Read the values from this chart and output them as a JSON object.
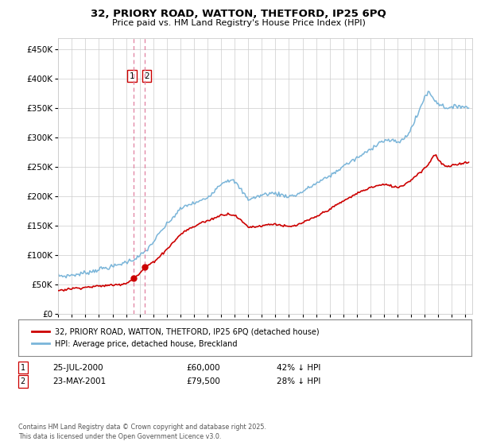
{
  "title": "32, PRIORY ROAD, WATTON, THETFORD, IP25 6PQ",
  "subtitle": "Price paid vs. HM Land Registry's House Price Index (HPI)",
  "ylim": [
    0,
    470000
  ],
  "xlim_start": 1995.0,
  "xlim_end": 2025.5,
  "legend_line1": "32, PRIORY ROAD, WATTON, THETFORD, IP25 6PQ (detached house)",
  "legend_line2": "HPI: Average price, detached house, Breckland",
  "purchase1_date": "25-JUL-2000",
  "purchase1_price": "£60,000",
  "purchase1_hpi": "42% ↓ HPI",
  "purchase1_x": 2000.56,
  "purchase1_y": 60000,
  "purchase2_date": "23-MAY-2001",
  "purchase2_price": "£79,500",
  "purchase2_hpi": "28% ↓ HPI",
  "purchase2_x": 2001.39,
  "purchase2_y": 79500,
  "vline1_x": 2000.56,
  "vline2_x": 2001.39,
  "hpi_color": "#7ab5d9",
  "price_color": "#cc0000",
  "vline_color": "#e080a0",
  "footer": "Contains HM Land Registry data © Crown copyright and database right 2025.\nThis data is licensed under the Open Government Licence v3.0.",
  "background_color": "#ffffff",
  "grid_color": "#cccccc",
  "hpi_keypoints": [
    [
      1995.0,
      65000
    ],
    [
      1995.5,
      64000
    ],
    [
      1996.0,
      66000
    ],
    [
      1996.5,
      67000
    ],
    [
      1997.0,
      70000
    ],
    [
      1997.5,
      72000
    ],
    [
      1998.0,
      76000
    ],
    [
      1998.5,
      78000
    ],
    [
      1999.0,
      80000
    ],
    [
      1999.5,
      84000
    ],
    [
      2000.0,
      88000
    ],
    [
      2000.5,
      92000
    ],
    [
      2001.0,
      98000
    ],
    [
      2001.5,
      108000
    ],
    [
      2002.0,
      122000
    ],
    [
      2002.5,
      138000
    ],
    [
      2003.0,
      152000
    ],
    [
      2003.5,
      165000
    ],
    [
      2004.0,
      178000
    ],
    [
      2004.5,
      185000
    ],
    [
      2005.0,
      188000
    ],
    [
      2005.5,
      192000
    ],
    [
      2006.0,
      198000
    ],
    [
      2006.5,
      210000
    ],
    [
      2007.0,
      222000
    ],
    [
      2007.5,
      228000
    ],
    [
      2008.0,
      225000
    ],
    [
      2008.5,
      210000
    ],
    [
      2009.0,
      195000
    ],
    [
      2009.5,
      198000
    ],
    [
      2010.0,
      202000
    ],
    [
      2010.5,
      205000
    ],
    [
      2011.0,
      205000
    ],
    [
      2011.5,
      202000
    ],
    [
      2012.0,
      200000
    ],
    [
      2012.5,
      202000
    ],
    [
      2013.0,
      208000
    ],
    [
      2013.5,
      215000
    ],
    [
      2014.0,
      222000
    ],
    [
      2014.5,
      228000
    ],
    [
      2015.0,
      235000
    ],
    [
      2015.5,
      242000
    ],
    [
      2016.0,
      252000
    ],
    [
      2016.5,
      258000
    ],
    [
      2017.0,
      265000
    ],
    [
      2017.5,
      272000
    ],
    [
      2018.0,
      280000
    ],
    [
      2018.5,
      290000
    ],
    [
      2019.0,
      295000
    ],
    [
      2019.5,
      295000
    ],
    [
      2020.0,
      292000
    ],
    [
      2020.5,
      298000
    ],
    [
      2021.0,
      315000
    ],
    [
      2021.5,
      340000
    ],
    [
      2022.0,
      370000
    ],
    [
      2022.3,
      378000
    ],
    [
      2022.6,
      368000
    ],
    [
      2023.0,
      358000
    ],
    [
      2023.5,
      352000
    ],
    [
      2024.0,
      350000
    ],
    [
      2024.5,
      355000
    ],
    [
      2025.0,
      352000
    ],
    [
      2025.25,
      350000
    ]
  ],
  "price_keypoints": [
    [
      1995.0,
      40000
    ],
    [
      1995.5,
      41000
    ],
    [
      1996.0,
      43000
    ],
    [
      1996.5,
      44000
    ],
    [
      1997.0,
      45000
    ],
    [
      1997.5,
      46000
    ],
    [
      1998.0,
      47000
    ],
    [
      1998.5,
      48000
    ],
    [
      1999.0,
      49000
    ],
    [
      1999.5,
      50000
    ],
    [
      2000.0,
      52000
    ],
    [
      2000.56,
      60000
    ],
    [
      2001.0,
      68000
    ],
    [
      2001.39,
      79500
    ],
    [
      2001.8,
      85000
    ],
    [
      2002.0,
      88000
    ],
    [
      2002.5,
      98000
    ],
    [
      2003.0,
      110000
    ],
    [
      2003.5,
      122000
    ],
    [
      2004.0,
      135000
    ],
    [
      2004.5,
      143000
    ],
    [
      2005.0,
      148000
    ],
    [
      2005.5,
      155000
    ],
    [
      2006.0,
      158000
    ],
    [
      2006.5,
      163000
    ],
    [
      2007.0,
      168000
    ],
    [
      2007.5,
      170000
    ],
    [
      2008.0,
      168000
    ],
    [
      2008.5,
      158000
    ],
    [
      2009.0,
      148000
    ],
    [
      2009.5,
      148000
    ],
    [
      2010.0,
      150000
    ],
    [
      2010.5,
      152000
    ],
    [
      2011.0,
      153000
    ],
    [
      2011.5,
      150000
    ],
    [
      2012.0,
      148000
    ],
    [
      2012.5,
      150000
    ],
    [
      2013.0,
      155000
    ],
    [
      2013.5,
      160000
    ],
    [
      2014.0,
      165000
    ],
    [
      2014.5,
      172000
    ],
    [
      2015.0,
      178000
    ],
    [
      2015.5,
      185000
    ],
    [
      2016.0,
      192000
    ],
    [
      2016.5,
      198000
    ],
    [
      2017.0,
      205000
    ],
    [
      2017.5,
      210000
    ],
    [
      2018.0,
      215000
    ],
    [
      2018.5,
      218000
    ],
    [
      2019.0,
      220000
    ],
    [
      2019.5,
      218000
    ],
    [
      2020.0,
      215000
    ],
    [
      2020.5,
      220000
    ],
    [
      2021.0,
      228000
    ],
    [
      2021.5,
      238000
    ],
    [
      2022.0,
      248000
    ],
    [
      2022.3,
      255000
    ],
    [
      2022.6,
      268000
    ],
    [
      2022.8,
      272000
    ],
    [
      2023.0,
      262000
    ],
    [
      2023.3,
      255000
    ],
    [
      2023.6,
      250000
    ],
    [
      2024.0,
      252000
    ],
    [
      2024.5,
      255000
    ],
    [
      2025.0,
      258000
    ],
    [
      2025.25,
      257000
    ]
  ]
}
